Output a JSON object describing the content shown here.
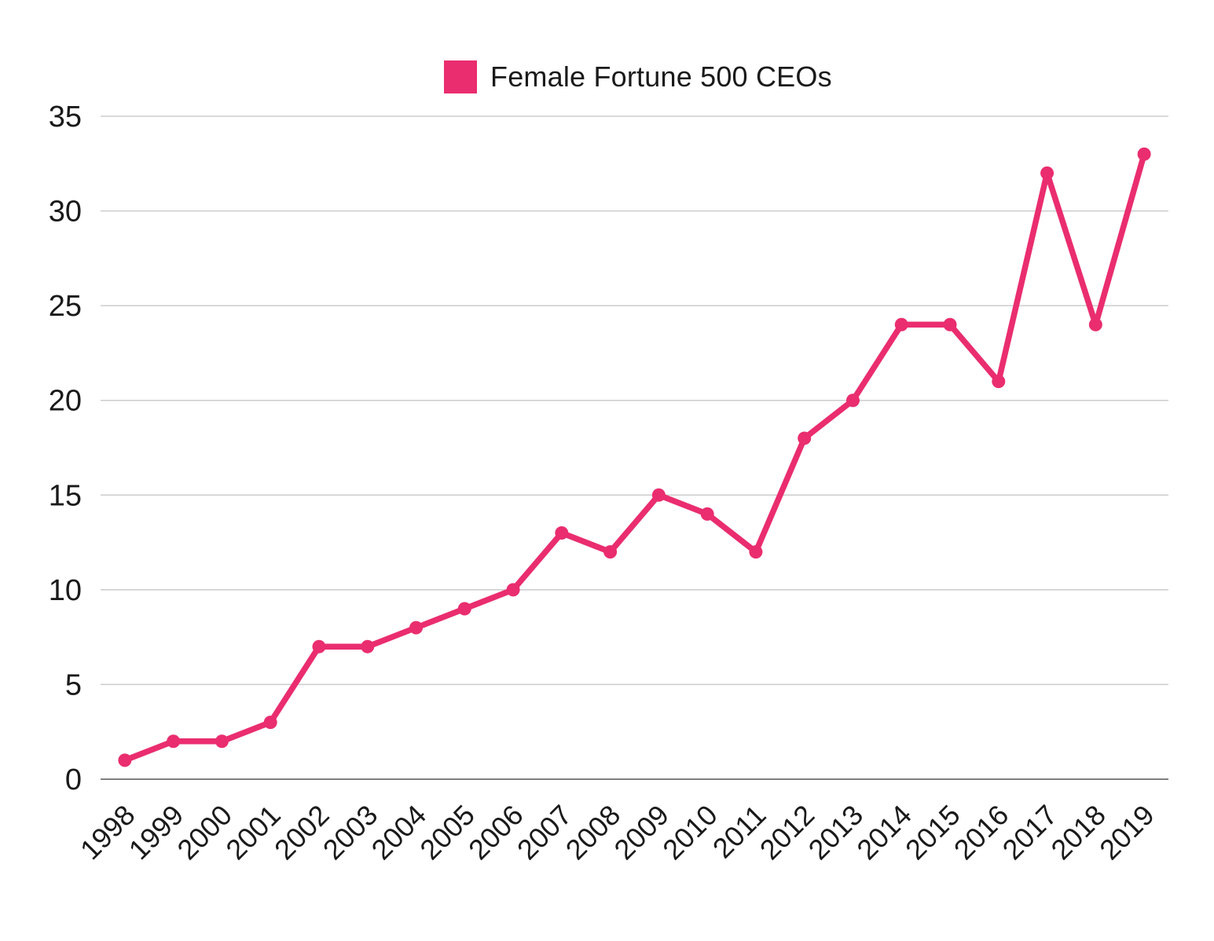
{
  "legend": {
    "label": "Female Fortune 500 CEOs"
  },
  "chart_data": {
    "type": "line",
    "title": "Female Fortune 500 CEOs",
    "xlabel": "",
    "ylabel": "",
    "categories": [
      "1998",
      "1999",
      "2000",
      "2001",
      "2002",
      "2003",
      "2004",
      "2005",
      "2006",
      "2007",
      "2008",
      "2009",
      "2010",
      "2011",
      "2012",
      "2013",
      "2014",
      "2015",
      "2016",
      "2017",
      "2018",
      "2019"
    ],
    "series": [
      {
        "name": "Female Fortune 500 CEOs",
        "color": "#EA2D6F",
        "values": [
          1,
          2,
          2,
          3,
          7,
          7,
          8,
          9,
          10,
          13,
          12,
          15,
          14,
          12,
          18,
          20,
          24,
          24,
          21,
          32,
          24,
          33
        ]
      }
    ],
    "ylim": [
      0,
      35
    ],
    "yticks": [
      0,
      5,
      10,
      15,
      20,
      25,
      30,
      35
    ],
    "grid": "horizontal",
    "legend_position": "top-center",
    "colors": {
      "grid": "#cccccc",
      "axis": "#7f7f7f",
      "tick_text": "#1a1a1a"
    }
  }
}
